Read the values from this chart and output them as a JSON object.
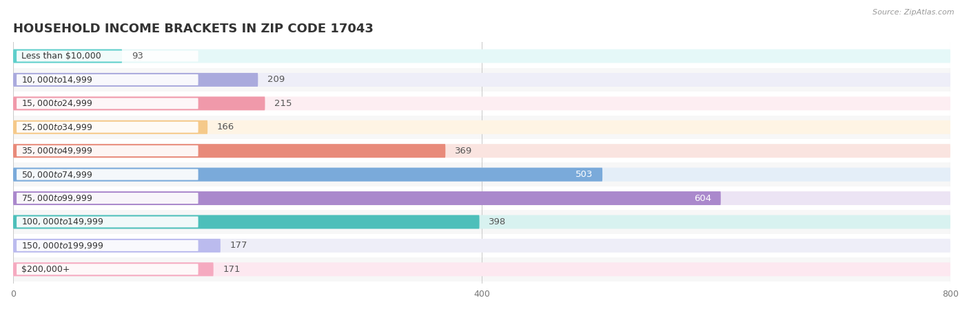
{
  "title": "HOUSEHOLD INCOME BRACKETS IN ZIP CODE 17043",
  "source": "Source: ZipAtlas.com",
  "categories": [
    "Less than $10,000",
    "$10,000 to $14,999",
    "$15,000 to $24,999",
    "$25,000 to $34,999",
    "$35,000 to $49,999",
    "$50,000 to $74,999",
    "$75,000 to $99,999",
    "$100,000 to $149,999",
    "$150,000 to $199,999",
    "$200,000+"
  ],
  "values": [
    93,
    209,
    215,
    166,
    369,
    503,
    604,
    398,
    177,
    171
  ],
  "bar_colors": [
    "#5ecfcb",
    "#aaaadd",
    "#f099aa",
    "#f5c98a",
    "#e88a7a",
    "#7aaada",
    "#aa88cc",
    "#4dbfba",
    "#bbbbee",
    "#f5aac0"
  ],
  "bar_bg_colors": [
    "#e5f8f8",
    "#eeeef8",
    "#fdeef2",
    "#fef4e4",
    "#fae4e0",
    "#e4eef8",
    "#ece4f4",
    "#d8f2f0",
    "#eeeef8",
    "#fde8f0"
  ],
  "row_bg_colors": [
    "#ffffff",
    "#f7f7f7",
    "#ffffff",
    "#f7f7f7",
    "#ffffff",
    "#f7f7f7",
    "#ffffff",
    "#f7f7f7",
    "#ffffff",
    "#f7f7f7"
  ],
  "xlim": [
    0,
    800
  ],
  "xticks": [
    0,
    400,
    800
  ],
  "background_color": "#ffffff",
  "label_inside": [
    false,
    false,
    false,
    false,
    false,
    true,
    true,
    false,
    false,
    false
  ],
  "title_fontsize": 13,
  "bar_height": 0.58,
  "label_fontsize": 9.5,
  "cat_fontsize": 9
}
